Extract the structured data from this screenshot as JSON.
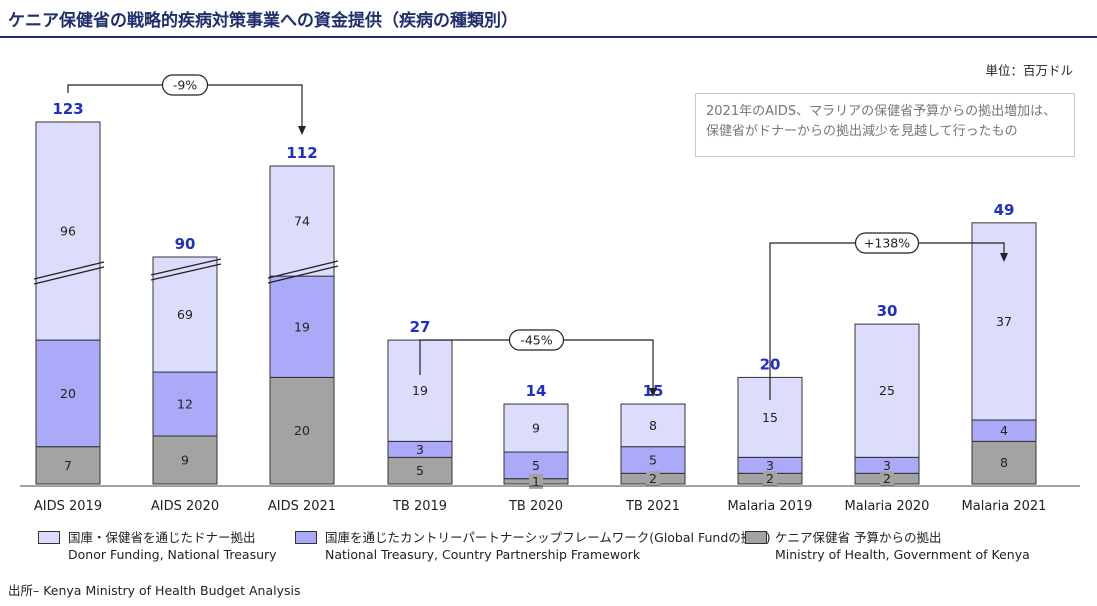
{
  "title": "ケニア保健省の戦略的疾病対策事業への資金提供（疾病の種類別）",
  "unit_label": "単位：百万ドル",
  "note": "2021年のAIDS、マラリアの保健省予算からの拠出増加は、保健省がドナーからの拠出減少を見越して行ったもの",
  "source": "出所– Kenya Ministry of Health Budget Analysis",
  "colors": {
    "donor": "#dcdcfc",
    "partnership": "#aaaaf8",
    "ministry": "#a3a3a3",
    "total_label": "#1f2fc8",
    "title": "#1f2f6e"
  },
  "legend": [
    {
      "key": "donor",
      "line1": "国庫・保健省を通じたドナー拠出",
      "line2": "Donor Funding, National Treasury"
    },
    {
      "key": "partnership",
      "line1": "国庫を通じたカントリーパートナーシップフレームワーク(Global Fundの拠出)",
      "line2": "National Treasury, Country Partnership Framework"
    },
    {
      "key": "ministry",
      "line1": "ケニア保健省 予算からの拠出",
      "line2": "Ministry of Health, Government of Kenya"
    }
  ],
  "chart_data": {
    "type": "bar",
    "stacked": true,
    "axis_break": "AIDS bars (broken scale)",
    "categories": [
      "AIDS 2019",
      "AIDS 2020",
      "AIDS 2021",
      "TB 2019",
      "TB 2020",
      "TB 2021",
      "Malaria 2019",
      "Malaria 2020",
      "Malaria 2021"
    ],
    "series": [
      {
        "key": "ministry",
        "name": "ケニア保健省 予算からの拠出",
        "values": [
          7,
          9,
          20,
          5,
          1,
          2,
          2,
          2,
          8
        ]
      },
      {
        "key": "partnership",
        "name": "国庫を通じたカントリーパートナーシップフレームワーク(Global Fundの拠出)",
        "values": [
          20,
          12,
          19,
          3,
          5,
          5,
          3,
          3,
          4
        ]
      },
      {
        "key": "donor",
        "name": "国庫・保健省を通じたドナー拠出",
        "values": [
          96,
          69,
          74,
          19,
          9,
          8,
          15,
          25,
          37
        ]
      }
    ],
    "totals": [
      123,
      90,
      112,
      27,
      14,
      15,
      20,
      30,
      49
    ],
    "annotations": [
      {
        "from": "AIDS 2019",
        "to": "AIDS 2021",
        "label": "-9%"
      },
      {
        "from": "TB 2019",
        "to": "TB 2021",
        "label": "-45%"
      },
      {
        "from": "Malaria 2019",
        "to": "Malaria 2021",
        "label": "+138%"
      }
    ]
  }
}
